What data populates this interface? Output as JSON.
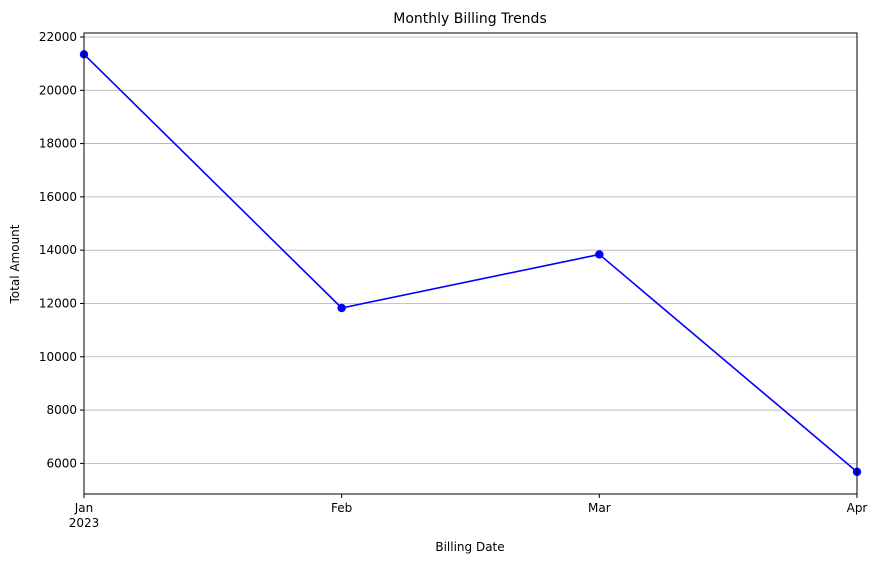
{
  "chart_data": {
    "type": "line",
    "title": "Monthly Billing Trends",
    "xlabel": "Billing Date",
    "ylabel": "Total Amount",
    "x": [
      "2023-01",
      "2023-02",
      "2023-03",
      "2023-04"
    ],
    "x_tick_labels": [
      "Jan",
      "Feb",
      "Mar",
      "Apr"
    ],
    "x_tick_sublabels": [
      "2023",
      "",
      "",
      ""
    ],
    "series": [
      {
        "values": [
          21350,
          11830,
          13840,
          5680
        ],
        "color": "#0000ff",
        "marker": "circle"
      }
    ],
    "ylim": [
      4850,
      22150
    ],
    "yticks": [
      6000,
      8000,
      10000,
      12000,
      14000,
      16000,
      18000,
      20000,
      22000
    ],
    "grid": "y-major"
  }
}
